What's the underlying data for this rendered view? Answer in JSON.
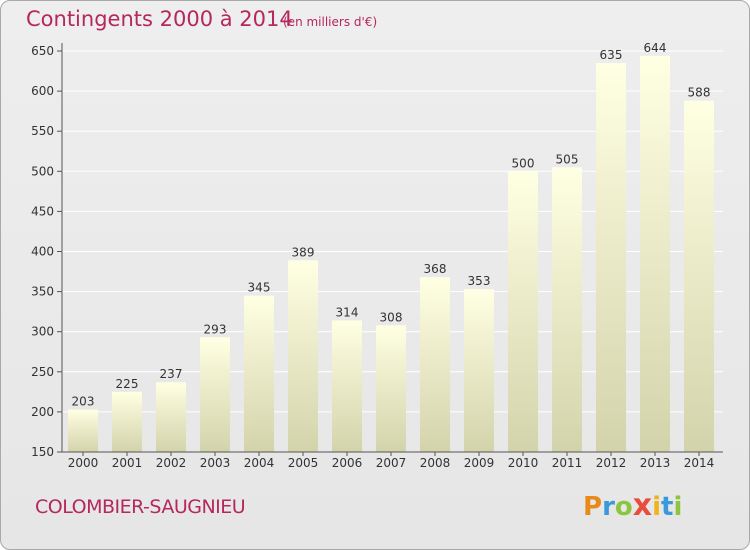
{
  "header": {
    "title": "Contingents 2000 à 2014",
    "subtitle": "(en milliers d'€)"
  },
  "footer": {
    "commune": "COLOMBIER-SAUGNIEU",
    "logo": {
      "text": "Proxiti",
      "letters": [
        {
          "ch": "P",
          "color": "#e88a1a"
        },
        {
          "ch": "r",
          "color": "#3a9ad9"
        },
        {
          "ch": "o",
          "color": "#8cc63f"
        },
        {
          "ch": "x",
          "color": "#e84c3d"
        },
        {
          "ch": "i",
          "color": "#f2b21c"
        },
        {
          "ch": "t",
          "color": "#3a9ad9"
        },
        {
          "ch": "i",
          "color": "#8cc63f"
        }
      ]
    }
  },
  "colors": {
    "accent": "#b5275e",
    "bar_top": "#ffffe0",
    "bar_bottom": "#d4d4aa",
    "grid": "#ffffff",
    "axis": "#555555"
  },
  "chart_data": {
    "type": "bar",
    "title": "Contingents 2000 à 2014",
    "subtitle": "(en milliers d'€)",
    "categories": [
      "2000",
      "2001",
      "2002",
      "2003",
      "2004",
      "2005",
      "2006",
      "2007",
      "2008",
      "2009",
      "2010",
      "2011",
      "2012",
      "2013",
      "2014"
    ],
    "values": [
      203,
      225,
      237,
      293,
      345,
      389,
      314,
      308,
      368,
      353,
      500,
      505,
      635,
      644,
      588
    ],
    "ylim": [
      150,
      650
    ],
    "yticks": [
      150,
      200,
      250,
      300,
      350,
      400,
      450,
      500,
      550,
      600,
      650
    ],
    "grid": true,
    "data_labels": true
  }
}
